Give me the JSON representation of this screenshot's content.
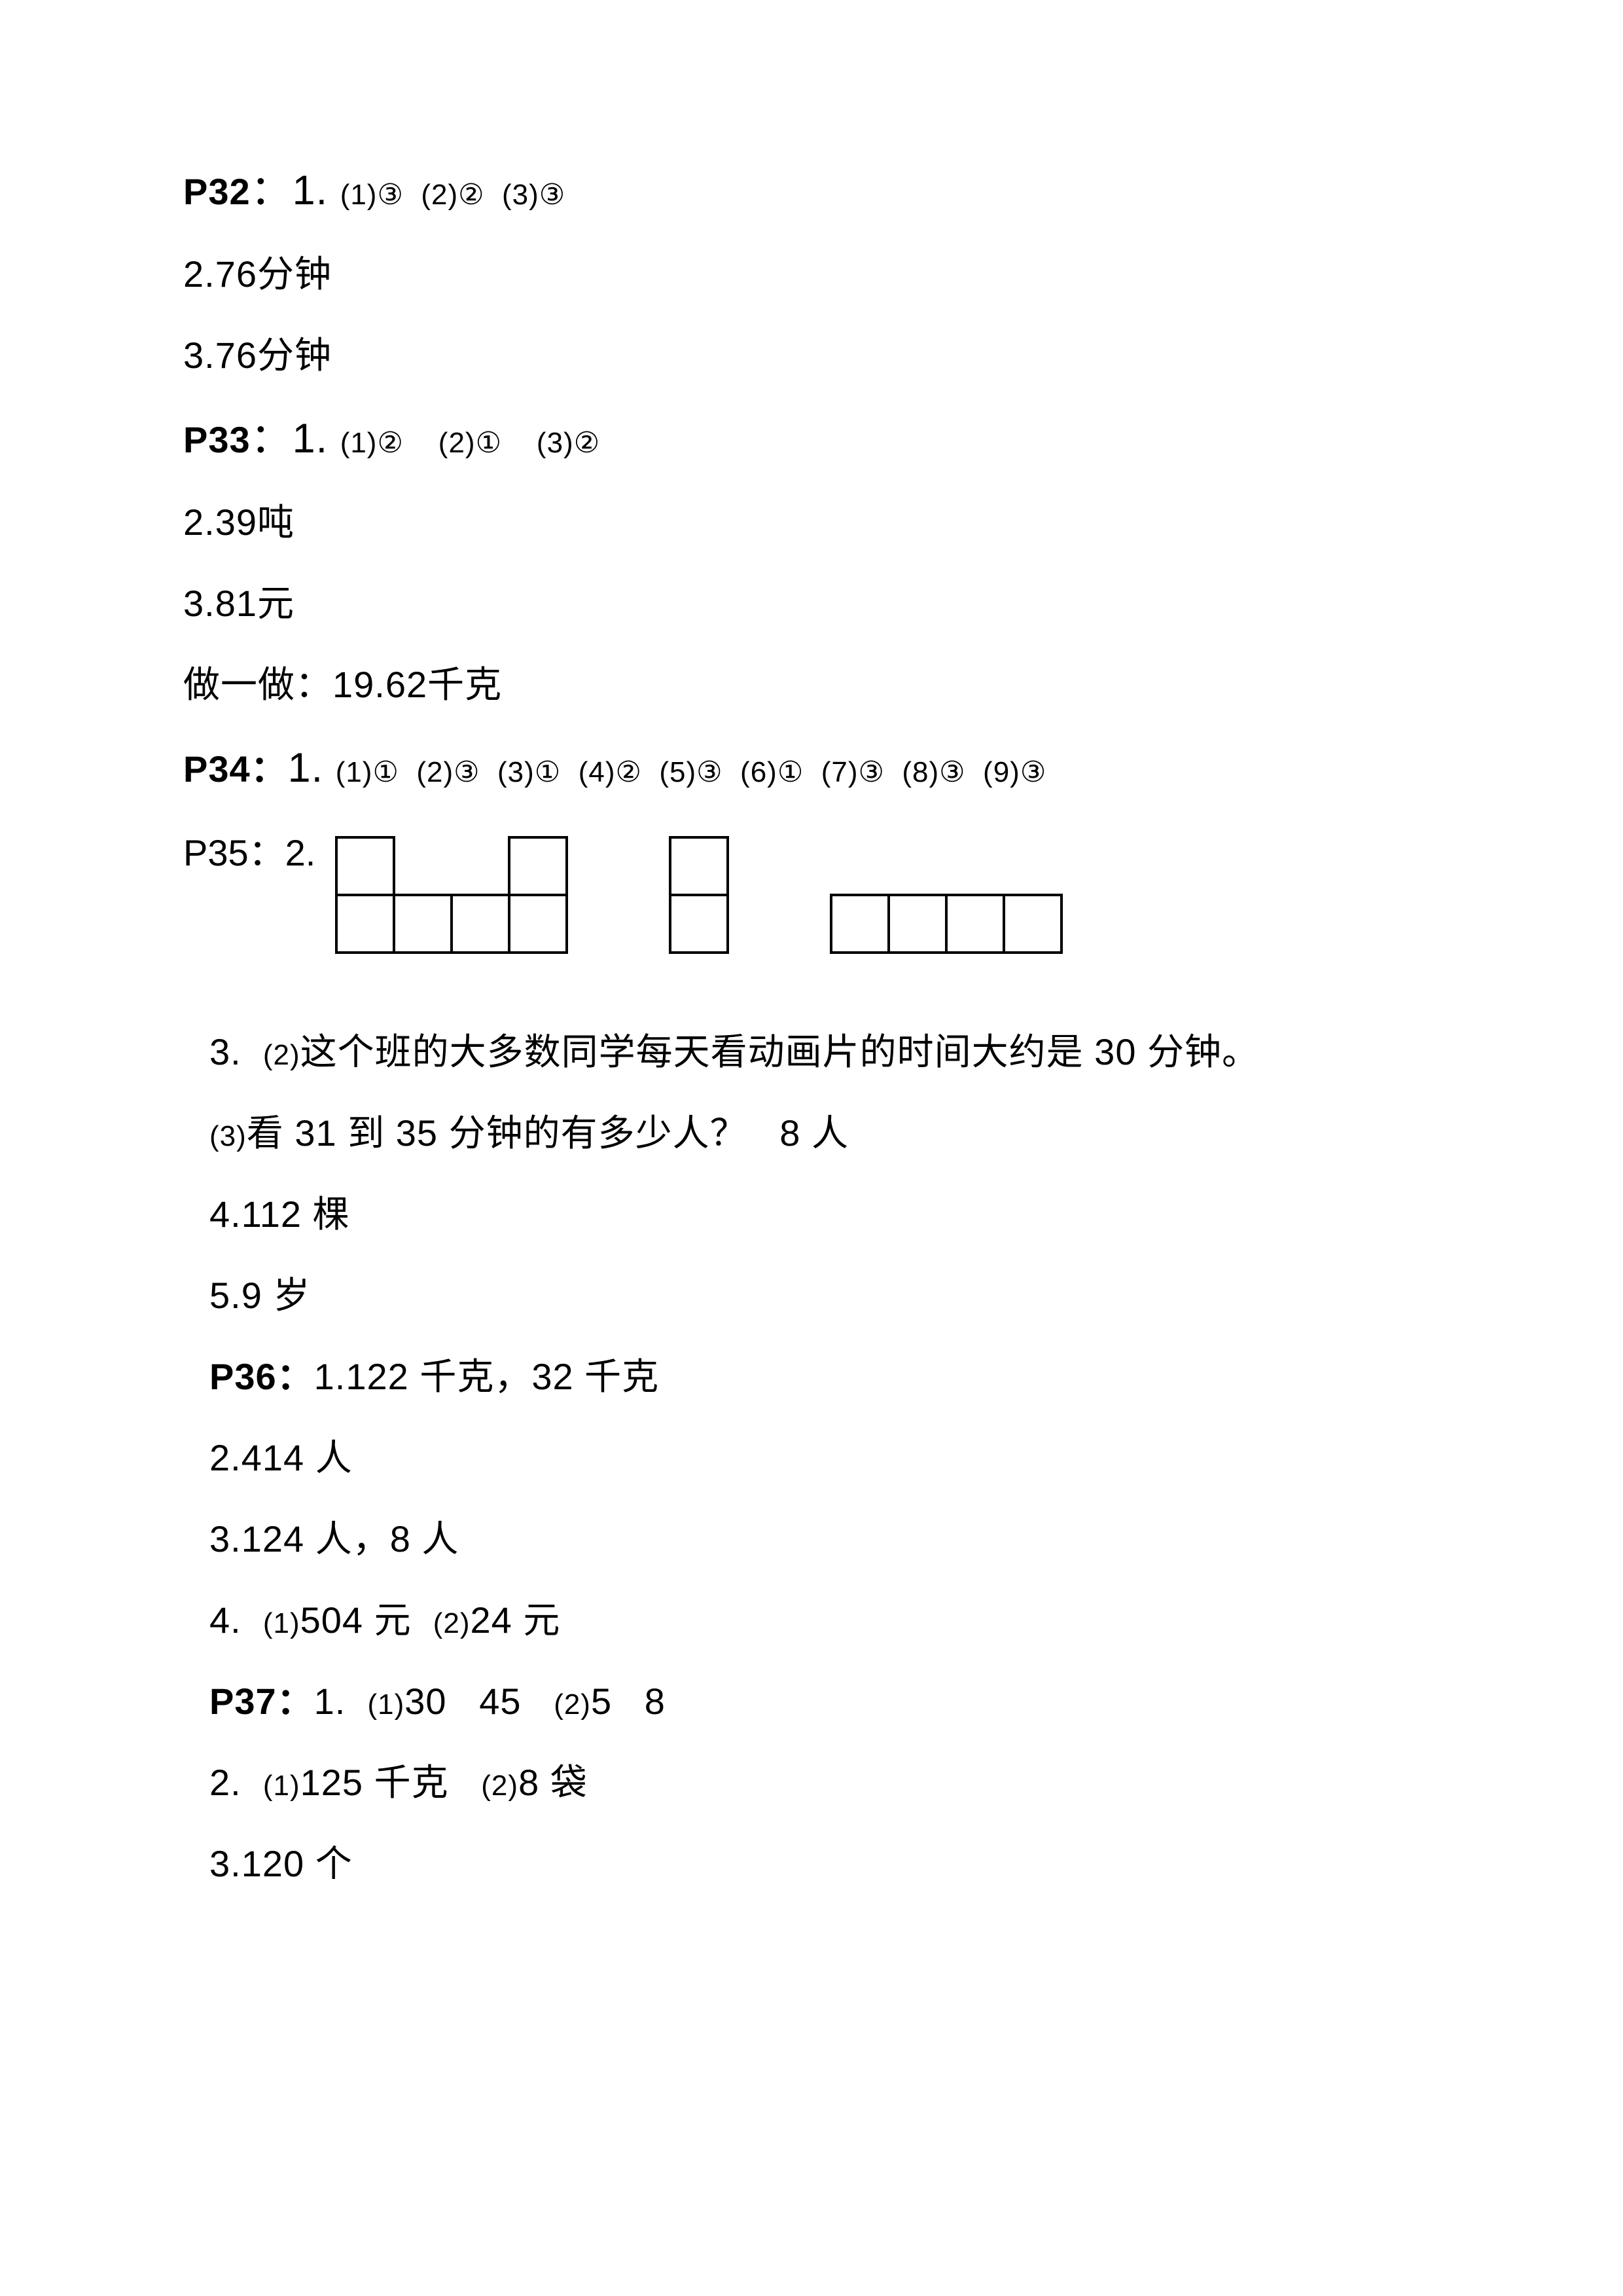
{
  "lines": {
    "l1_bold": "P32",
    "l1_rest": "：1. ",
    "l1_sub": "(1)③  (2)②  (3)③",
    "l2": "2.76分钟",
    "l3": "3.76分钟",
    "l4_bold": "P33",
    "l4_rest": "：1. ",
    "l4_sub": "(1)②    (2)①    (3)②",
    "l5": "2.39吨",
    "l6": "3.81元",
    "l7": "做一做：19.62千克",
    "l8_bold": "P34：",
    "l8_rest": "1. ",
    "l8_sub": "(1)①  (2)③  (3)①  (4)②  (5)③  (6)①  (7)③  (8)③  (9)③",
    "l9_bold": "P35：",
    "l9_rest": "2.",
    "l10": "3.  (2)这个班的大多数同学每天看动画片的时间大约是 30 分钟。",
    "l11": "(3)看 31 到 35 分钟的有多少人？   8 人",
    "l12": "4.112 棵",
    "l13": "5.9 岁",
    "l14_bold": "P36：",
    "l14_rest": "1.122 千克，32 千克",
    "l15": "2.414 人",
    "l16": "3.124 人，8 人",
    "l17": "4.  (1)504 元  (2)24 元",
    "l18_bold": "P37：",
    "l18_rest": "1.  (1)30   45   (2)5   8",
    "l19": "2.  (1)125 千克   (2)8 袋",
    "l20": "3.120 个"
  },
  "shapes": {
    "stroke": "#000000",
    "strokeWidth": 4,
    "cell": 88,
    "shape1": {
      "width_cells": 4,
      "height_cells": 2,
      "tops": [
        true,
        false,
        false,
        true
      ]
    },
    "shape2": {
      "width_cells": 1,
      "height_cells": 2
    },
    "shape3": {
      "width_cells": 4,
      "height_cells": 1
    }
  },
  "colors": {
    "text": "#000000",
    "background": "#ffffff"
  },
  "typography": {
    "body_fontsize": 56,
    "sub_fontsize": 44,
    "line_gap": 68,
    "font_family": "Microsoft YaHei / SimHei / Arial"
  }
}
